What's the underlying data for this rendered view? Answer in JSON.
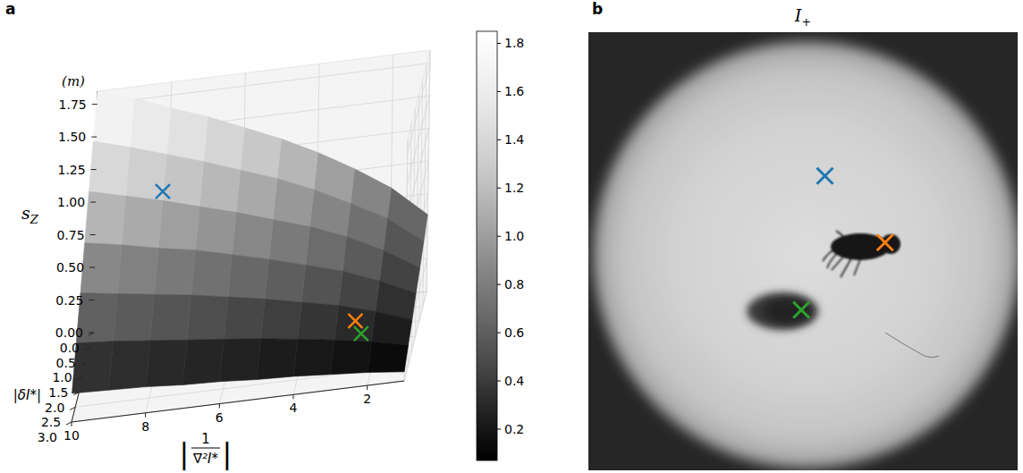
{
  "chart_data": [
    {
      "type": "surface3d",
      "panel": "a",
      "x_label": {
        "left": "|",
        "numerator": "1",
        "denominator": "∇²I*",
        "right": "|"
      },
      "y_label": "|δI*|",
      "z_label": {
        "text": "s",
        "subscript": "Z"
      },
      "z_unit": "(m)",
      "x": [
        1,
        2,
        3,
        4,
        5,
        6,
        7,
        8,
        9,
        10
      ],
      "y": [
        0,
        0.5,
        1,
        1.5,
        2,
        2.5,
        3
      ],
      "z": [
        [
          0.59,
          0.83,
          1.01,
          1.17,
          1.31,
          1.43,
          1.55,
          1.65,
          1.76,
          1.85
        ],
        [
          0.5,
          0.71,
          0.86,
          1.0,
          1.12,
          1.22,
          1.32,
          1.41,
          1.5,
          1.58
        ],
        [
          0.41,
          0.58,
          0.72,
          0.83,
          0.92,
          1.01,
          1.09,
          1.17,
          1.24,
          1.31
        ],
        [
          0.33,
          0.46,
          0.57,
          0.65,
          0.73,
          0.8,
          0.87,
          0.92,
          0.98,
          1.03
        ],
        [
          0.24,
          0.34,
          0.42,
          0.48,
          0.54,
          0.59,
          0.64,
          0.68,
          0.72,
          0.76
        ],
        [
          0.16,
          0.22,
          0.27,
          0.31,
          0.35,
          0.38,
          0.41,
          0.44,
          0.47,
          0.49
        ],
        [
          0.07,
          0.1,
          0.12,
          0.14,
          0.15,
          0.17,
          0.18,
          0.2,
          0.21,
          0.22
        ]
      ],
      "xlim": [
        10,
        1
      ],
      "xticks": [
        2,
        4,
        6,
        8,
        10
      ],
      "ylim": [
        0,
        3
      ],
      "yticks": [
        {
          "value": 0,
          "label": "0.0"
        },
        0.5,
        {
          "value": 1,
          "label": "1.0"
        },
        1.5,
        {
          "value": 2,
          "label": "2.0"
        },
        2.5,
        {
          "value": 3,
          "label": "3.0"
        }
      ],
      "zlim": [
        0,
        1.85
      ],
      "zticks": [
        {
          "value": 0,
          "label": "0.00"
        },
        0.25,
        {
          "value": 0.5,
          "label": "0.50"
        },
        0.75,
        {
          "value": 1,
          "label": "1.00"
        },
        1.25,
        {
          "value": 1.5,
          "label": "1.50"
        },
        1.75
      ],
      "colorbar": {
        "range": [
          0.07,
          1.85
        ],
        "ticks": [
          0.2,
          0.4,
          0.6,
          0.8,
          {
            "value": 1,
            "label": "1.0"
          },
          1.2,
          1.4,
          1.6,
          1.8
        ]
      },
      "color": "gray",
      "grid": true,
      "points": {
        "x": [
          8,
          2.5,
          2.3
        ],
        "y": [
          1.0,
          2.2,
          2.4
        ],
        "z": [
          1.24,
          0.33,
          0.27
        ],
        "colors": [
          "#1f77b4",
          "#ff7f0e",
          "#2ca02c"
        ],
        "marker": "x"
      }
    },
    {
      "type": "image",
      "panel": "b",
      "title": {
        "text": "I",
        "subscript": "+"
      },
      "xlim": [
        0,
        100
      ],
      "ylim": [
        0,
        100
      ],
      "tick_labels": false,
      "points": {
        "x": [
          55.1,
          69.1,
          49.6
        ],
        "y": [
          32.8,
          48.0,
          63.4
        ],
        "colors": [
          "#1f77b4",
          "#ff7f0e",
          "#2ca02c"
        ],
        "marker": "x"
      }
    }
  ]
}
